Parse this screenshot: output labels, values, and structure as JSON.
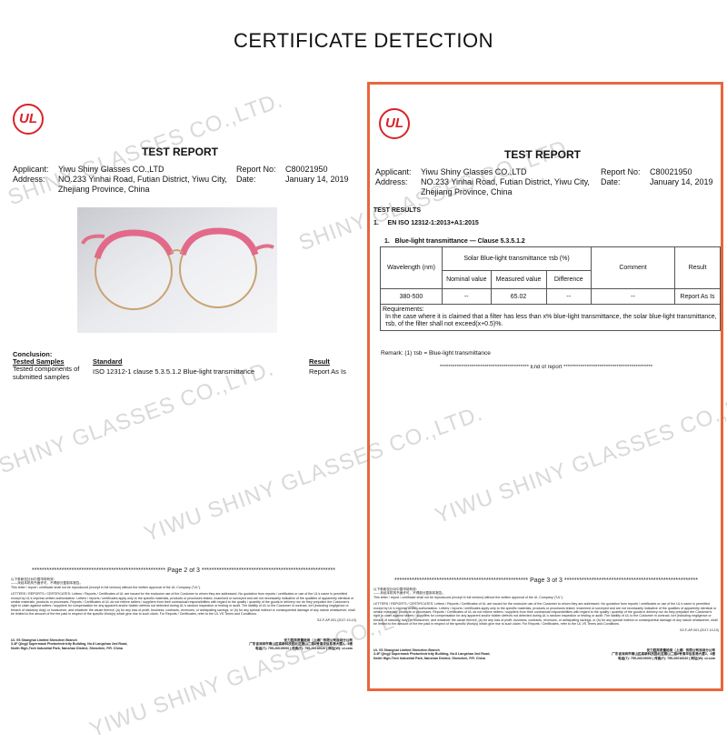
{
  "heading": "CERTIFICATE DETECTION",
  "colors": {
    "frame": "#e8673a",
    "ul_red": "#d9232a"
  },
  "logo_text": "UL",
  "pages": [
    {
      "title": "TEST REPORT",
      "applicant_label": "Applicant:",
      "applicant": "Yiwu Shiny Glasses CO.,LTD",
      "address_label": "Address:",
      "address1": "NO.233 Yinhai Road, Futian District, Yiwu City,",
      "address2": "Zhejiang Province, China",
      "report_no_label": "Report No:",
      "report_no": "C80021950",
      "date_label": "Date:",
      "date": "January 14, 2019",
      "conclusion": {
        "label": "Conclusion:",
        "col1": "Tested Samples",
        "col2": "Standard",
        "col3": "Result",
        "sample": "Tested components of submitted samples",
        "standard": "ISO 12312-1 clause 5.3.5.1.2 Blue-light transmittance",
        "result": "Report As Is"
      },
      "page_label": "Page 2 of 3"
    },
    {
      "title": "TEST REPORT",
      "applicant_label": "Applicant:",
      "applicant": "Yiwu Shiny Glasses CO.,LTD",
      "address_label": "Address:",
      "address1": "NO.233 Yinhai Road, Futian District, Yiwu City,",
      "address2": "Zhejiang Province, China",
      "report_no_label": "Report No:",
      "report_no": "C80021950",
      "date_label": "Date:",
      "date": "January 14, 2019",
      "results_label": "TEST RESULTS",
      "section": "1.     EN ISO 12312-1:2013+A1:2015",
      "subsection": "1.   Blue-light transmittance — Clause 5.3.5.1.2",
      "table": {
        "wavelength": "Wavelength (nm)",
        "solar": "Solar Blue-light transmittance τsb (%)",
        "nominal": "Nominal value",
        "measured": "Measured value",
        "difference": "Difference",
        "comment": "Comment",
        "result": "Result",
        "row": {
          "wavelength": "380-500",
          "nominal": "--",
          "measured": "65.02",
          "difference": "--",
          "comment": "--",
          "result": "Report As Is"
        },
        "req_label": "Requirements:",
        "req_text": "In the case where it is claimed that a filter has less than x% blue-light transmittance, the solar blue-light transmittance, τsb, of the filter shall not exceed(x+0.5)%."
      },
      "remark": "Remark:  (1) τsb = Blue-light transmittance",
      "end": "End of report",
      "page_label": "Page 3 of 3"
    }
  ],
  "footer": {
    "cn1": "以下条款仅针对中国市场有效：",
    "cn2": "——未经本机构书面许可，不得部分复制本报告。",
    "repro": "This letter / report / certificate shall not be reproduced (except in full version) without the written approval of the UL Company (\"UL\").",
    "legal": "LETTERS / REPORTS / CERTIFICATES: Letters / Reports / Certificates of UL are issued for the exclusive use of the Customer to whom they are addressed. No quotation from reports / certificates or use of the UL's name is permitted except by UL's express written authorization. Letters / reports / certificates apply only to the specific materials, products or processes tested, examined or surveyed and are not necessarily indicative of the qualities of apparently identical or similar materials, products or processes. Reports / Certificates of UL do not relieve sellers / suppliers from their contractual responsibilities with regard to the quality / quantity of the goods in delivery nor do they prejudice the Customer's right to claim against sellers / suppliers for compensation for any apparent and/or hidden defects not detected during UL's random inspection or testing or audit. The liability of UL to the Customer in contract, tort (including negligence or breach of statutory duty) or howsoever, and whatever the cause thereof, (a) for any loss of profit, business, contracts, revenues, or anticipating savings, or (b) for any special indirect or consequential damage of any nature whatsoever, shall be limited to the amount of the fee paid in respect of the specific Work(s) which give rise to such claim. For Reports / Certificates, refer to the UL VS Terms and Conditions.",
    "form_code": "SZ-F-AP-001 (2017-10-10)",
    "branch": "UL VS Shanghai Limited Shenzhen Branch",
    "addr1": "3-4F Qingji Supermask Photoelectricity Building, No.8 Langshan 2nd Road,",
    "addr2": "North High-Tech Industrial Park, Nanshan District, Shenzhen, P.R. China",
    "cn_company": "优力胜邦质量检测（上海）有限公司深圳分公司",
    "cn_addr": "广东省深圳市南山区高新科技园北区朗山二路8号清华信息港大厦3、4楼",
    "cn_tel": "电话(T): 755-26019000 | 传真(F): 755-26016020 | 网址(W): ul.com"
  },
  "watermark": [
    "SHINY GLASSES CO.,LTD.",
    "SHINY GLASSES CO.,LTD",
    "YIWU SHINY GLASSES CO.,LTD.",
    "SHINY GLASSES CO.,LTD.",
    "YIWU SHINY GLASSES CO.,LTD.",
    "YIWU SHINY GLASSES CO.,LTD."
  ]
}
